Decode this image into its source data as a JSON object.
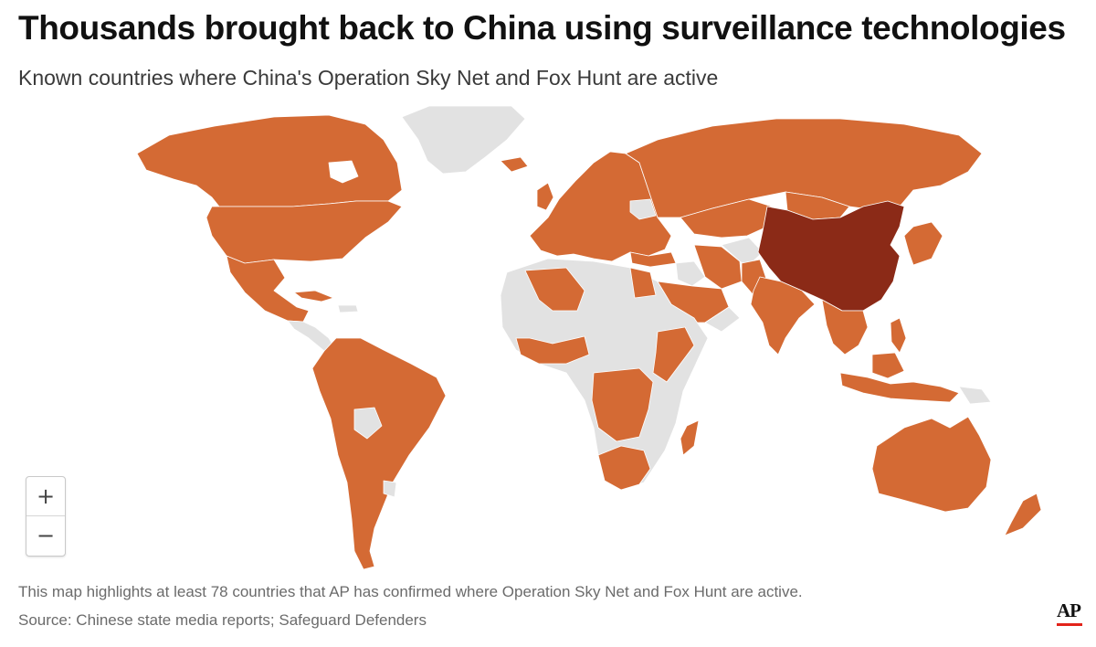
{
  "header": {
    "title": "Thousands brought back to China using surveillance technologies",
    "subtitle": "Known countries where China's Operation Sky Net and Fox Hunt are active"
  },
  "map": {
    "colors": {
      "active": "#d46a34",
      "china": "#8b2a17",
      "inactive": "#e2e2e2",
      "border": "#ffffff"
    },
    "legend": {
      "highlighted_count": 78
    }
  },
  "zoom_controls": {
    "zoom_in": "+",
    "zoom_out": "−"
  },
  "footer": {
    "note": "This map highlights at least 78 countries that AP has confirmed where Operation Sky Net and Fox Hunt are active.",
    "source": "Source: Chinese state media reports; Safeguard Defenders"
  },
  "branding": {
    "logo_text": "AP",
    "logo_accent": "#e2231a"
  }
}
